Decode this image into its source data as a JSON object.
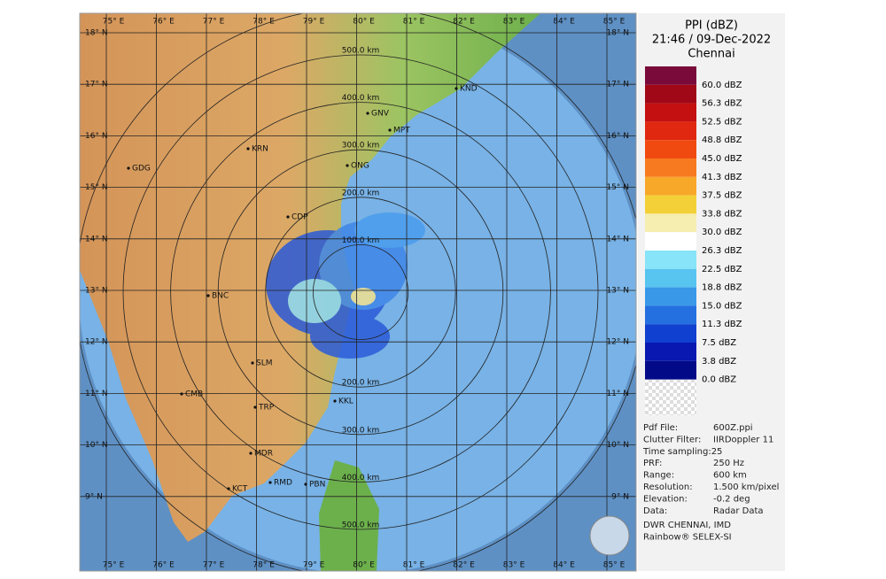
{
  "panel": {
    "product": "PPI (dBZ)",
    "timestamp": "21:46 / 09-Dec-2022",
    "station": "Chennai"
  },
  "legend": [
    {
      "label": "60.0 dBZ",
      "color": "#7a0a3a"
    },
    {
      "label": "56.3 dBZ",
      "color": "#a00818"
    },
    {
      "label": "52.5 dBZ",
      "color": "#c41010"
    },
    {
      "label": "48.8 dBZ",
      "color": "#e02810"
    },
    {
      "label": "45.0 dBZ",
      "color": "#f04a10"
    },
    {
      "label": "41.3 dBZ",
      "color": "#f87a20"
    },
    {
      "label": "37.5 dBZ",
      "color": "#f8a828"
    },
    {
      "label": "33.8 dBZ",
      "color": "#f4d038"
    },
    {
      "label": "30.0 dBZ",
      "color": "#f6eeb0"
    },
    {
      "label": "26.3 dBZ",
      "color": "#ffffff"
    },
    {
      "label": "22.5 dBZ",
      "color": "#88e4f8"
    },
    {
      "label": "18.8 dBZ",
      "color": "#58c4f0"
    },
    {
      "label": "15.0 dBZ",
      "color": "#3a98e8"
    },
    {
      "label": "11.3 dBZ",
      "color": "#2470e0"
    },
    {
      "label": "7.5 dBZ",
      "color": "#1040d0"
    },
    {
      "label": "3.8 dBZ",
      "color": "#0818b0"
    },
    {
      "label": "0.0 dBZ",
      "color": "#020a88"
    }
  ],
  "info": [
    [
      "Pdf File:",
      "600Z.ppi"
    ],
    [
      "Clutter Filter:",
      "IIRDoppler 11"
    ],
    [
      "Time sampling:25",
      ""
    ],
    [
      "PRF:",
      "250 Hz"
    ],
    [
      "Range:",
      "600 km"
    ],
    [
      "Resolution:",
      "1.500 km/pixel"
    ],
    [
      "Elevation:",
      "-0.2 deg"
    ],
    [
      "Data:",
      "Radar Data"
    ]
  ],
  "credits": [
    "DWR CHENNAI, IMD",
    "Rainbow® SELEX-SI"
  ],
  "longitudes": [
    "75° E",
    "76° E",
    "77° E",
    "78° E",
    "79° E",
    "80° E",
    "81° E",
    "82° E",
    "83° E",
    "84° E",
    "85° E"
  ],
  "latitudes": [
    "18° N",
    "17° N",
    "16° N",
    "15° N",
    "14° N",
    "13° N",
    "12° N",
    "11° N",
    "10° N",
    "9° N"
  ],
  "range_labels_north": [
    "500.0 km",
    "400.0 km",
    "300.0 km",
    "200.0 km",
    "100.0 km"
  ],
  "range_labels_south": [
    "200.0 km",
    "300.0 km",
    "400.0 km",
    "500.0 km"
  ],
  "stations": [
    "KND",
    "GNV",
    "MPT",
    "KRN",
    "ONG",
    "GDG",
    "CDP",
    "BNC",
    "SLM",
    "CMB",
    "TRP",
    "KKL",
    "MDR",
    "RMD",
    "PBN",
    "KCT"
  ]
}
